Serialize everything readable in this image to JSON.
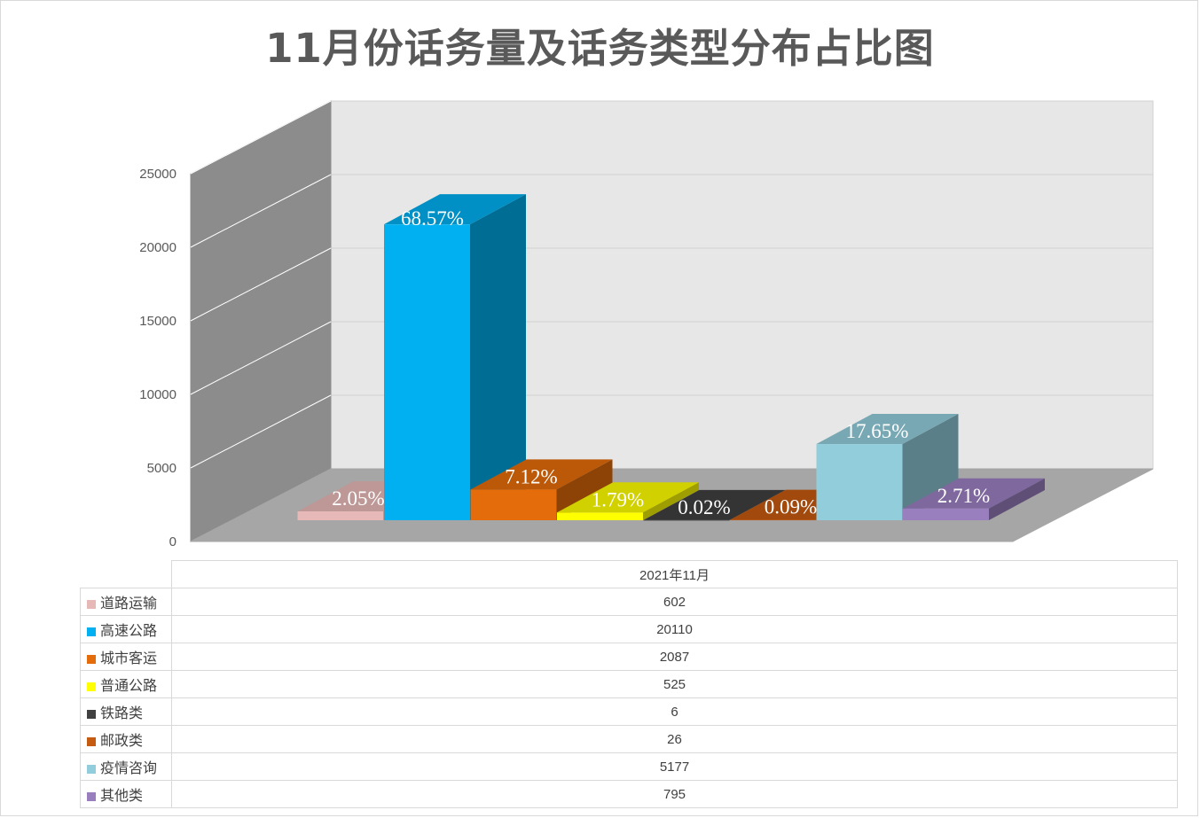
{
  "chart_data": {
    "type": "bar",
    "title": "11月份话务量及话务类型分布占比图",
    "categories": [
      "2021年11月"
    ],
    "ylim": [
      0,
      25000
    ],
    "yticks": [
      0,
      5000,
      10000,
      15000,
      20000,
      25000
    ],
    "grid": true,
    "legend": "table-below",
    "series": [
      {
        "name": "道路运输",
        "values": [
          602
        ],
        "label": "2.05%",
        "color": "#e6b9b8"
      },
      {
        "name": "高速公路",
        "values": [
          20110
        ],
        "label": "68.57%",
        "color": "#00b0f0"
      },
      {
        "name": "城市客运",
        "values": [
          2087
        ],
        "label": "7.12%",
        "color": "#e46c0a"
      },
      {
        "name": "普通公路",
        "values": [
          525
        ],
        "label": "1.79%",
        "color": "#ffff00"
      },
      {
        "name": "铁路类",
        "values": [
          6
        ],
        "label": "0.02%",
        "color": "#404040"
      },
      {
        "name": "邮政类",
        "values": [
          26
        ],
        "label": "0.09%",
        "color": "#c55a11"
      },
      {
        "name": "疫情咨询",
        "values": [
          5177
        ],
        "label": "17.65%",
        "color": "#92cddc"
      },
      {
        "name": "其他类",
        "values": [
          795
        ],
        "label": "2.71%",
        "color": "#9a7fbf"
      }
    ]
  }
}
